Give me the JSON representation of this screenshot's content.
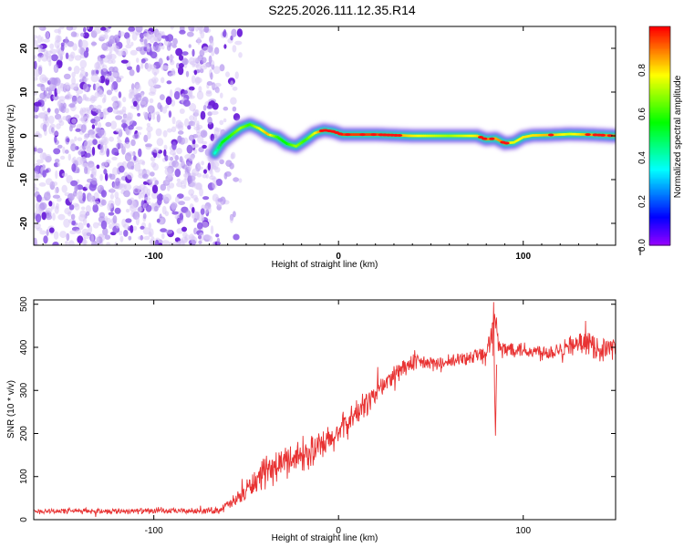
{
  "figure": {
    "title": "S225.2026.111.12.35.R14"
  },
  "chart_data": [
    {
      "type": "heatmap",
      "xlabel": "Height of straight line (km)",
      "ylabel": "Frequency (Hz)",
      "xlim": [
        -165,
        150
      ],
      "ylim": [
        -25,
        25
      ],
      "x_ticks": [
        -100,
        0,
        100
      ],
      "x_tick_labels": [
        "-100",
        "0",
        "100"
      ],
      "y_ticks": [
        -20,
        -10,
        0,
        10,
        20
      ],
      "y_tick_labels": [
        "-20",
        "-10",
        "0",
        "10",
        "20"
      ],
      "colorbar": {
        "label": "Normalized spectral amplitude",
        "range": [
          0,
          1
        ],
        "ticks": [
          0.0,
          0.2,
          0.4,
          0.6,
          0.8
        ],
        "tick_labels": [
          "0.0",
          "0.2",
          "0.4",
          "0.6",
          "0.8"
        ]
      },
      "noise_region_x": [
        -165,
        -65
      ],
      "ridge": {
        "x": [
          -67,
          -63,
          -58,
          -53,
          -48,
          -43,
          -38,
          -33,
          -28,
          -23,
          -18,
          -13,
          -8,
          -3,
          2,
          10,
          20,
          40,
          60,
          75,
          80,
          85,
          90,
          95,
          100,
          105,
          115,
          125,
          135,
          150
        ],
        "freq": [
          -4,
          -1.5,
          0.2,
          1.8,
          2.6,
          1.7,
          0.3,
          -0.3,
          -1.8,
          -2.4,
          -1.0,
          0.6,
          1.3,
          1.0,
          0.3,
          0.3,
          0.3,
          0.0,
          0.0,
          0.0,
          -0.8,
          -0.6,
          -1.7,
          -1.5,
          -0.3,
          0.1,
          0.2,
          0.4,
          0.3,
          0.0
        ],
        "amplitude": [
          0.35,
          0.55,
          0.6,
          0.7,
          0.6,
          0.75,
          0.85,
          0.6,
          0.55,
          0.7,
          0.6,
          0.75,
          0.95,
          0.95,
          0.95,
          0.95,
          0.95,
          0.8,
          0.7,
          0.8,
          0.9,
          0.85,
          0.9,
          0.75,
          0.8,
          0.8,
          0.85,
          0.75,
          0.85,
          0.9
        ]
      }
    },
    {
      "type": "line",
      "xlabel": "Height of straight line (km)",
      "ylabel": "SNR (10 * v/v)",
      "xlim": [
        -165,
        150
      ],
      "ylim": [
        0,
        510
      ],
      "x_ticks": [
        -100,
        0,
        100
      ],
      "x_tick_labels": [
        "-100",
        "0",
        "100"
      ],
      "y_ticks": [
        0,
        100,
        200,
        300,
        400,
        500
      ],
      "y_tick_labels": [
        "0",
        "100",
        "200",
        "300",
        "400",
        "500"
      ],
      "color": "#e83232",
      "series": [
        {
          "name": "SNR",
          "x": [
            -165,
            -150,
            -130,
            -110,
            -90,
            -75,
            -65,
            -55,
            -45,
            -35,
            -25,
            -15,
            -5,
            5,
            15,
            25,
            35,
            45,
            55,
            65,
            75,
            80,
            84,
            88,
            95,
            105,
            115,
            125,
            135,
            142,
            150
          ],
          "y": [
            20,
            20,
            20,
            20,
            20,
            20,
            22,
            45,
            90,
            120,
            145,
            155,
            180,
            225,
            270,
            315,
            355,
            365,
            360,
            370,
            385,
            380,
            460,
            390,
            400,
            390,
            390,
            405,
            410,
            395,
            400
          ],
          "spread": [
            8,
            8,
            8,
            8,
            8,
            8,
            10,
            22,
            38,
            45,
            45,
            48,
            45,
            40,
            38,
            32,
            28,
            24,
            20,
            22,
            24,
            28,
            45,
            30,
            25,
            25,
            25,
            28,
            30,
            35,
            30
          ]
        }
      ]
    }
  ]
}
